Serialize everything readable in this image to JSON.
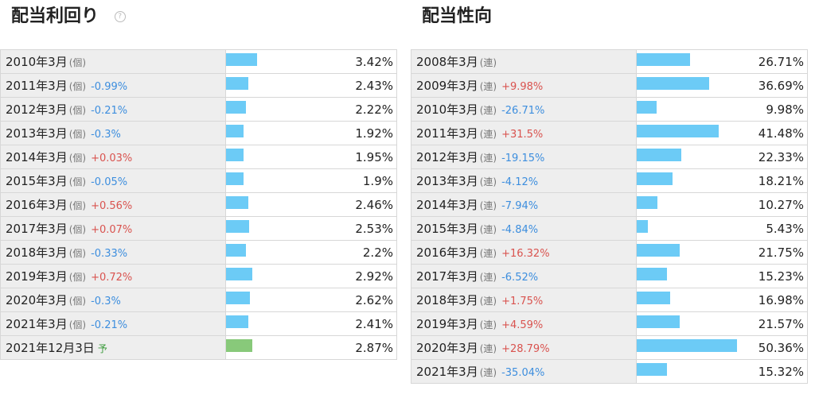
{
  "yield_panel": {
    "title": "配当利回り",
    "help_icon": "question-circle-icon",
    "rows": [
      {
        "period": "2010年3月",
        "kind": "(個)",
        "change": "",
        "value": "3.42%"
      },
      {
        "period": "2011年3月",
        "kind": "(個)",
        "change": "-0.99%",
        "value": "2.43%"
      },
      {
        "period": "2012年3月",
        "kind": "(個)",
        "change": "-0.21%",
        "value": "2.22%"
      },
      {
        "period": "2013年3月",
        "kind": "(個)",
        "change": "-0.3%",
        "value": "1.92%"
      },
      {
        "period": "2014年3月",
        "kind": "(個)",
        "change": "+0.03%",
        "value": "1.95%"
      },
      {
        "period": "2015年3月",
        "kind": "(個)",
        "change": "-0.05%",
        "value": "1.9%"
      },
      {
        "period": "2016年3月",
        "kind": "(個)",
        "change": "+0.56%",
        "value": "2.46%"
      },
      {
        "period": "2017年3月",
        "kind": "(個)",
        "change": "+0.07%",
        "value": "2.53%"
      },
      {
        "period": "2018年3月",
        "kind": "(個)",
        "change": "-0.33%",
        "value": "2.2%"
      },
      {
        "period": "2019年3月",
        "kind": "(個)",
        "change": "+0.72%",
        "value": "2.92%"
      },
      {
        "period": "2020年3月",
        "kind": "(個)",
        "change": "-0.3%",
        "value": "2.62%"
      },
      {
        "period": "2021年3月",
        "kind": "(個)",
        "change": "-0.21%",
        "value": "2.41%"
      },
      {
        "period": "2021年12月3日",
        "kind": "",
        "forecast": "予",
        "change": "",
        "value": "2.87%"
      }
    ]
  },
  "payout_panel": {
    "title": "配当性向",
    "rows": [
      {
        "period": "2008年3月",
        "kind": "(連)",
        "change": "",
        "value": "26.71%"
      },
      {
        "period": "2009年3月",
        "kind": "(連)",
        "change": "+9.98%",
        "value": "36.69%"
      },
      {
        "period": "2010年3月",
        "kind": "(連)",
        "change": "-26.71%",
        "value": "9.98%"
      },
      {
        "period": "2011年3月",
        "kind": "(連)",
        "change": "+31.5%",
        "value": "41.48%"
      },
      {
        "period": "2012年3月",
        "kind": "(連)",
        "change": "-19.15%",
        "value": "22.33%"
      },
      {
        "period": "2013年3月",
        "kind": "(連)",
        "change": "-4.12%",
        "value": "18.21%"
      },
      {
        "period": "2014年3月",
        "kind": "(連)",
        "change": "-7.94%",
        "value": "10.27%"
      },
      {
        "period": "2015年3月",
        "kind": "(連)",
        "change": "-4.84%",
        "value": "5.43%"
      },
      {
        "period": "2016年3月",
        "kind": "(連)",
        "change": "+16.32%",
        "value": "21.75%"
      },
      {
        "period": "2017年3月",
        "kind": "(連)",
        "change": "-6.52%",
        "value": "15.23%"
      },
      {
        "period": "2018年3月",
        "kind": "(連)",
        "change": "+1.75%",
        "value": "16.98%"
      },
      {
        "period": "2019年3月",
        "kind": "(連)",
        "change": "+4.59%",
        "value": "21.57%"
      },
      {
        "period": "2020年3月",
        "kind": "(連)",
        "change": "+28.79%",
        "value": "50.36%"
      },
      {
        "period": "2021年3月",
        "kind": "(連)",
        "change": "-35.04%",
        "value": "15.32%"
      }
    ]
  },
  "colors": {
    "bar": "#6ccbf6",
    "forecast_bar": "#88c97a",
    "increase": "#d9534f",
    "decrease": "#3d8ede"
  },
  "chart_data": [
    {
      "type": "bar",
      "title": "配当利回り",
      "orientation": "horizontal",
      "categories": [
        "2010年3月",
        "2011年3月",
        "2012年3月",
        "2013年3月",
        "2014年3月",
        "2015年3月",
        "2016年3月",
        "2017年3月",
        "2018年3月",
        "2019年3月",
        "2020年3月",
        "2021年3月",
        "2021年12月3日"
      ],
      "values": [
        3.42,
        2.43,
        2.22,
        1.92,
        1.95,
        1.9,
        2.46,
        2.53,
        2.2,
        2.92,
        2.62,
        2.41,
        2.87
      ],
      "changes": [
        null,
        -0.99,
        -0.21,
        -0.3,
        0.03,
        -0.05,
        0.56,
        0.07,
        -0.33,
        0.72,
        -0.3,
        -0.21,
        null
      ],
      "forecast_index": 12,
      "unit": "%",
      "xlim": [
        0,
        10.2
      ]
    },
    {
      "type": "bar",
      "title": "配当性向",
      "orientation": "horizontal",
      "categories": [
        "2008年3月",
        "2009年3月",
        "2010年3月",
        "2011年3月",
        "2012年3月",
        "2013年3月",
        "2014年3月",
        "2015年3月",
        "2016年3月",
        "2017年3月",
        "2018年3月",
        "2019年3月",
        "2020年3月",
        "2021年3月"
      ],
      "values": [
        26.71,
        36.69,
        9.98,
        41.48,
        22.33,
        18.21,
        10.27,
        5.43,
        21.75,
        15.23,
        16.98,
        21.57,
        50.36,
        15.32
      ],
      "changes": [
        null,
        9.98,
        -26.71,
        31.5,
        -19.15,
        -4.12,
        -7.94,
        -4.84,
        16.32,
        -6.52,
        1.75,
        4.59,
        28.79,
        -35.04
      ],
      "unit": "%",
      "xlim": [
        0,
        100
      ]
    }
  ]
}
